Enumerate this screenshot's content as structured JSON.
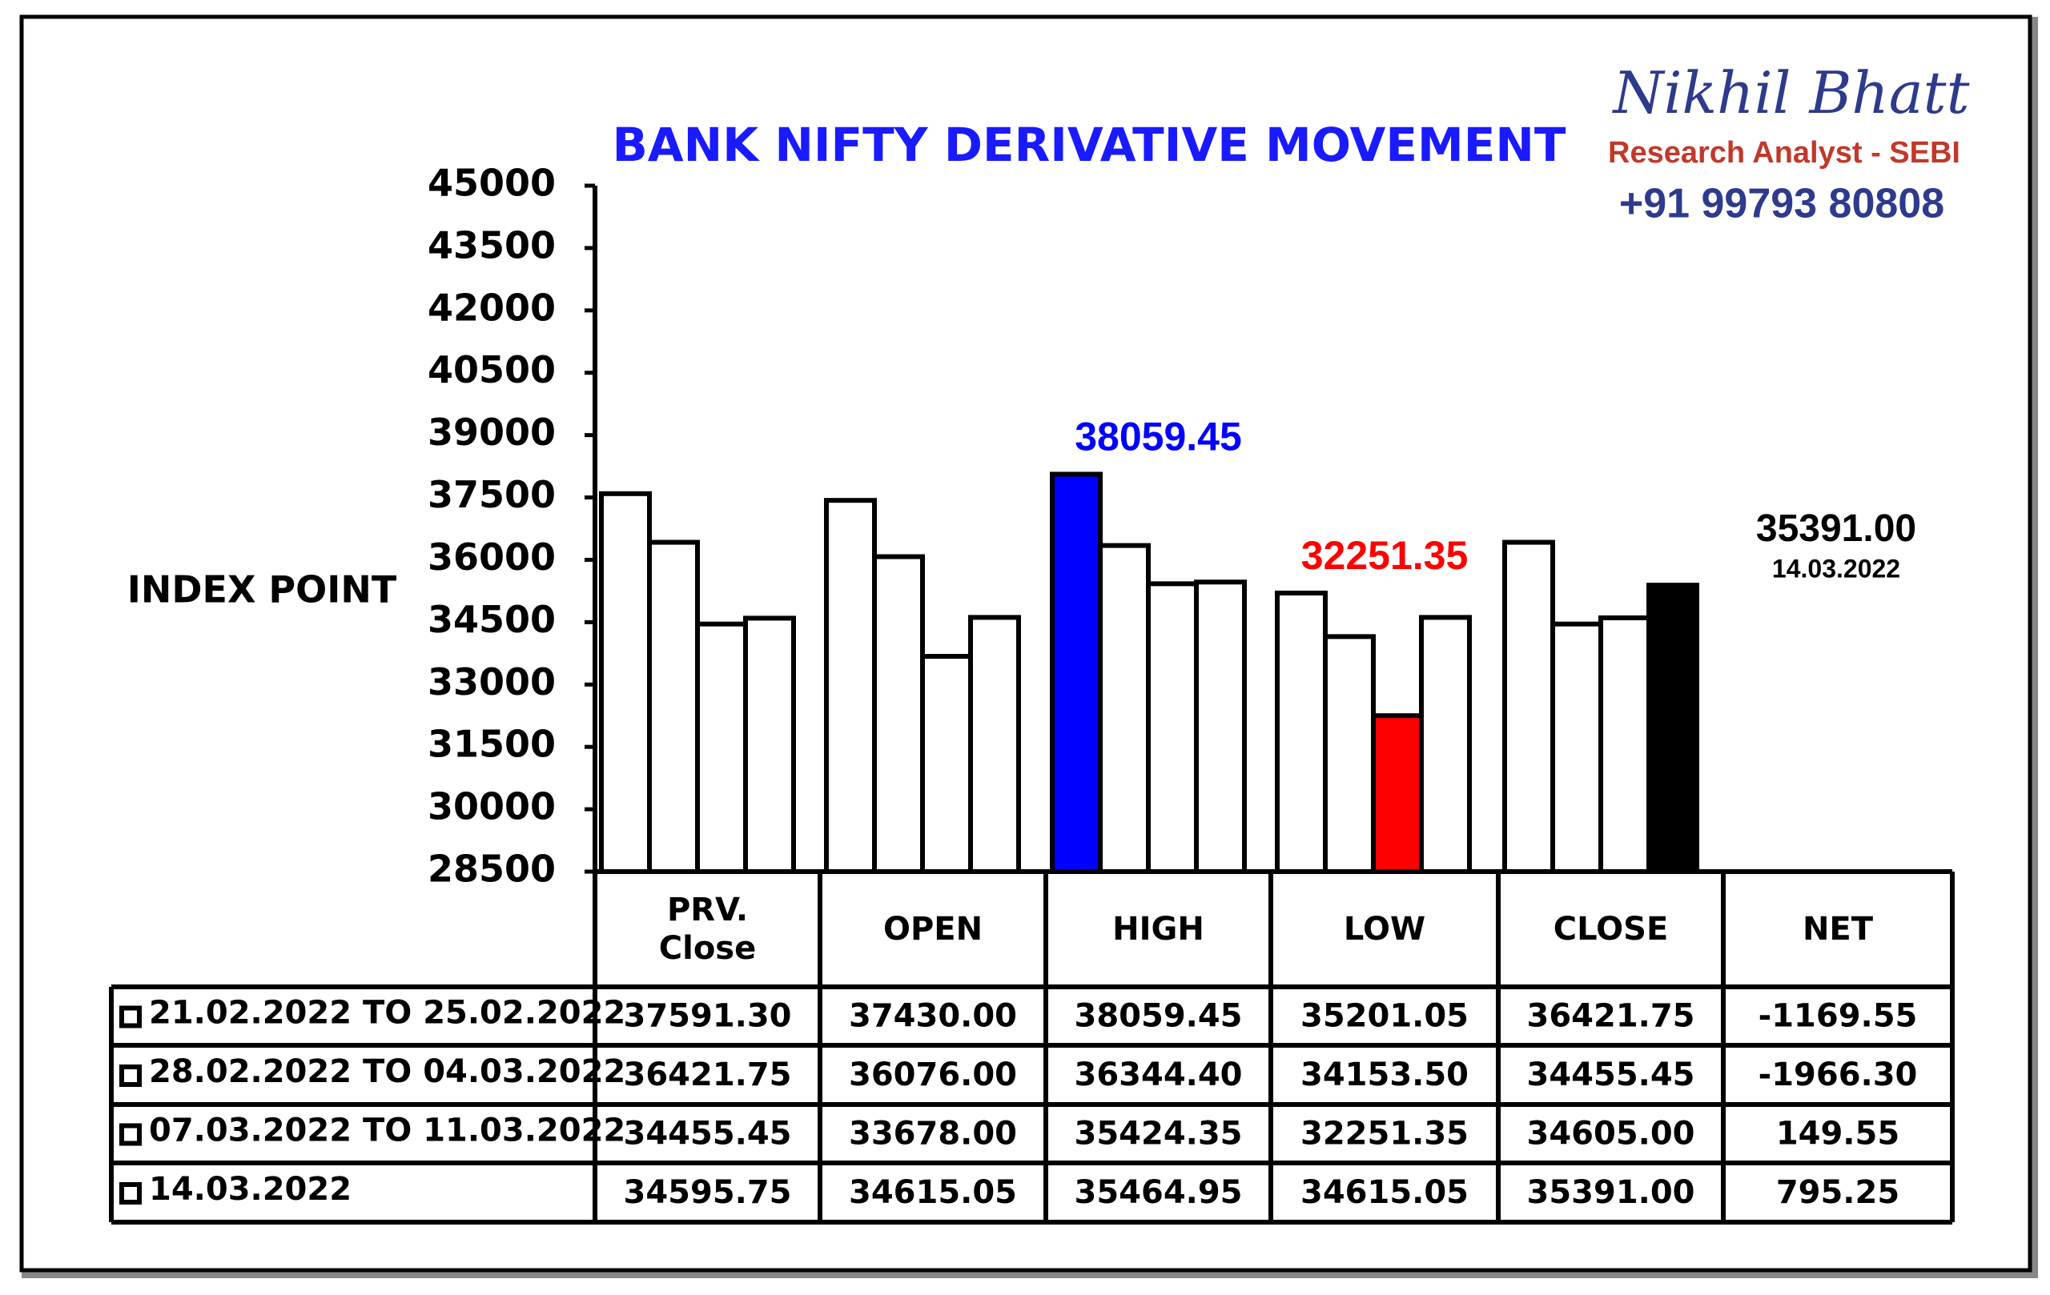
{
  "chart_data": {
    "type": "bar",
    "title": "BANK NIFTY DERIVATIVE MOVEMENT",
    "ylabel": "INDEX POINT",
    "brand": {
      "name": "Nikhil Bhatt",
      "role": "Research Analyst - SEBI",
      "phone": "+91 99793 80808"
    },
    "categories": [
      "PRV. Close",
      "OPEN",
      "HIGH",
      "LOW",
      "CLOSE"
    ],
    "net_label": "NET",
    "ylim": [
      28500,
      45000
    ],
    "yticks": [
      28500,
      30000,
      31500,
      33000,
      34500,
      36000,
      37500,
      39000,
      40500,
      42000,
      43500,
      45000
    ],
    "series": [
      {
        "name": "21.02.2022 TO 25.02.2022",
        "colors": [
          "#ffffff",
          "#ffffff",
          "#0000ff",
          "#ffffff",
          "#ffffff"
        ],
        "values": [
          37591.3,
          37430,
          38059.45,
          35201.05,
          36421.75
        ],
        "value_labels": [
          "37591.30",
          "37430.00",
          "38059.45",
          "35201.05",
          "36421.75"
        ],
        "net": -1169.55,
        "net_label": "-1169.55"
      },
      {
        "name": "28.02.2022 TO 04.03.2022",
        "colors": [
          "#ffffff",
          "#ffffff",
          "#ffffff",
          "#ffffff",
          "#ffffff"
        ],
        "values": [
          36421.75,
          36076,
          36344.4,
          34153.5,
          34455.45
        ],
        "value_labels": [
          "36421.75",
          "36076.00",
          "36344.40",
          "34153.50",
          "34455.45"
        ],
        "net": -1966.3,
        "net_label": "-1966.30"
      },
      {
        "name": "07.03.2022 TO 11.03.2022",
        "colors": [
          "#ffffff",
          "#ffffff",
          "#ffffff",
          "#ff0000",
          "#ffffff"
        ],
        "values": [
          34455.45,
          33678,
          35424.35,
          32251.35,
          34605
        ],
        "value_labels": [
          "34455.45",
          "33678.00",
          "35424.35",
          "32251.35",
          "34605.00"
        ],
        "net": 149.55,
        "net_label": "149.55"
      },
      {
        "name": "14.03.2022",
        "colors": [
          "#ffffff",
          "#ffffff",
          "#ffffff",
          "#ffffff",
          "#000000"
        ],
        "values": [
          34595.75,
          34615.05,
          35464.95,
          34615.05,
          35391
        ],
        "value_labels": [
          "34595.75",
          "34615.05",
          "35464.95",
          "34615.05",
          "35391.00"
        ],
        "net": 795.25,
        "net_label": "795.25"
      }
    ]
  }
}
